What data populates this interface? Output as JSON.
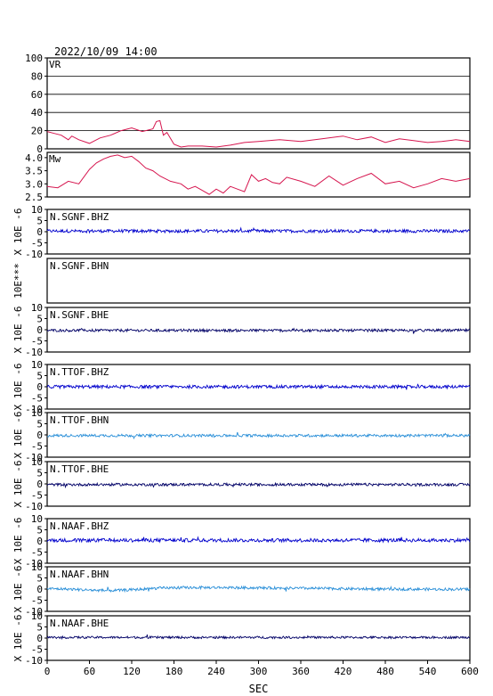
{
  "header": {
    "timestamp": "2022/10/09 14:00"
  },
  "chart_data": [
    {
      "type": "line",
      "panel_label": "VR",
      "ylim": [
        0,
        100
      ],
      "yticks": [
        "100",
        "80",
        "60",
        "40",
        "20",
        "0"
      ],
      "grid": true,
      "color": "#d6164f",
      "x": [
        0,
        10,
        20,
        30,
        35,
        45,
        60,
        75,
        90,
        105,
        120,
        135,
        150,
        155,
        160,
        165,
        170,
        180,
        190,
        200,
        220,
        240,
        260,
        280,
        300,
        330,
        360,
        390,
        420,
        440,
        460,
        480,
        500,
        520,
        540,
        560,
        580,
        600
      ],
      "y": [
        19,
        17,
        15,
        10,
        14,
        10,
        6,
        12,
        15,
        20,
        23,
        19,
        22,
        30,
        31,
        15,
        18,
        5,
        2,
        3,
        3,
        2,
        4,
        7,
        8,
        10,
        8,
        11,
        14,
        10,
        13,
        7,
        11,
        9,
        7,
        8,
        10,
        8
      ]
    },
    {
      "type": "line",
      "panel_label": "Mw",
      "ylim": [
        2.5,
        4.2
      ],
      "yticks": [
        "4.0",
        "3.5",
        "3.0",
        "2.5"
      ],
      "color": "#d6164f",
      "x": [
        0,
        15,
        30,
        45,
        60,
        70,
        80,
        90,
        100,
        110,
        120,
        130,
        140,
        150,
        160,
        175,
        190,
        200,
        210,
        220,
        230,
        240,
        250,
        260,
        270,
        280,
        290,
        300,
        310,
        320,
        330,
        340,
        360,
        380,
        400,
        420,
        440,
        460,
        480,
        500,
        520,
        540,
        560,
        580,
        600
      ],
      "y": [
        2.9,
        2.85,
        3.1,
        3.0,
        3.55,
        3.8,
        3.95,
        4.05,
        4.1,
        4.0,
        4.05,
        3.85,
        3.6,
        3.5,
        3.3,
        3.1,
        3.0,
        2.8,
        2.9,
        2.75,
        2.6,
        2.8,
        2.65,
        2.9,
        2.8,
        2.7,
        3.35,
        3.1,
        3.2,
        3.05,
        3.0,
        3.25,
        3.1,
        2.9,
        3.3,
        2.95,
        3.2,
        3.4,
        3.0,
        3.1,
        2.85,
        3.0,
        3.2,
        3.1,
        3.2
      ]
    },
    {
      "type": "line",
      "station": "N.SGNF.BHZ",
      "unit_label": "X 10E -6",
      "ylim": [
        -10,
        10
      ],
      "yticks": [
        "10",
        "5",
        "0",
        "-5",
        "-10"
      ],
      "color": "#0000cc",
      "amplitude": 0.7,
      "baseline": 0.3
    },
    {
      "type": "line",
      "station": "N.SGNF.BHN",
      "unit_label": "10E***",
      "ylim": [
        -10,
        10
      ],
      "yticks": [],
      "color": "#0000cc",
      "amplitude": 0,
      "baseline": 0,
      "no_data": true
    },
    {
      "type": "line",
      "station": "N.SGNF.BHE",
      "unit_label": "X 10E -6",
      "ylim": [
        -10,
        10
      ],
      "yticks": [
        "10",
        "5",
        "0",
        "-5",
        "-10"
      ],
      "color": "#000066",
      "amplitude": 0.6,
      "baseline": -0.3
    },
    {
      "type": "line",
      "station": "N.TTOF.BHZ",
      "unit_label": "X 10E -6",
      "ylim": [
        -10,
        10
      ],
      "yticks": [
        "10",
        "5",
        "0",
        "-5",
        "-10"
      ],
      "color": "#0000cc",
      "amplitude": 0.7,
      "baseline": 0.0
    },
    {
      "type": "line",
      "station": "N.TTOF.BHN",
      "unit_label": "X 10E -6",
      "ylim": [
        -10,
        10
      ],
      "yticks": [
        "10",
        "5",
        "0",
        "-5",
        "-10"
      ],
      "color": "#2a8fd8",
      "amplitude": 0.6,
      "baseline": -0.3
    },
    {
      "type": "line",
      "station": "N.TTOF.BHE",
      "unit_label": "X 10E -6",
      "ylim": [
        -10,
        10
      ],
      "yticks": [
        "10",
        "5",
        "0",
        "-5",
        "-10"
      ],
      "color": "#000066",
      "amplitude": 0.6,
      "baseline": -0.3
    },
    {
      "type": "line",
      "station": "N.NAAF.BHZ",
      "unit_label": "X 10E -6",
      "ylim": [
        -10,
        10
      ],
      "yticks": [
        "10",
        "5",
        "0",
        "-5",
        "-10"
      ],
      "color": "#0000cc",
      "amplitude": 0.8,
      "baseline": 0.3
    },
    {
      "type": "line",
      "station": "N.NAAF.BHN",
      "unit_label": "X 10E -6",
      "ylim": [
        -10,
        10
      ],
      "yticks": [
        "10",
        "5",
        "0",
        "-5",
        "-10"
      ],
      "color": "#2a8fd8",
      "amplitude": 0.6,
      "baseline": 0.3,
      "drift": true
    },
    {
      "type": "line",
      "station": "N.NAAF.BHE",
      "unit_label": "X 10E -6",
      "ylim": [
        -10,
        10
      ],
      "yticks": [
        "10",
        "5",
        "0",
        "-5",
        "-10"
      ],
      "color": "#000066",
      "amplitude": 0.5,
      "baseline": 0.3
    }
  ],
  "xaxis": {
    "xlim": [
      0,
      600
    ],
    "ticks": [
      "0",
      "60",
      "120",
      "180",
      "240",
      "300",
      "360",
      "420",
      "480",
      "540",
      "600"
    ],
    "label": "SEC"
  }
}
